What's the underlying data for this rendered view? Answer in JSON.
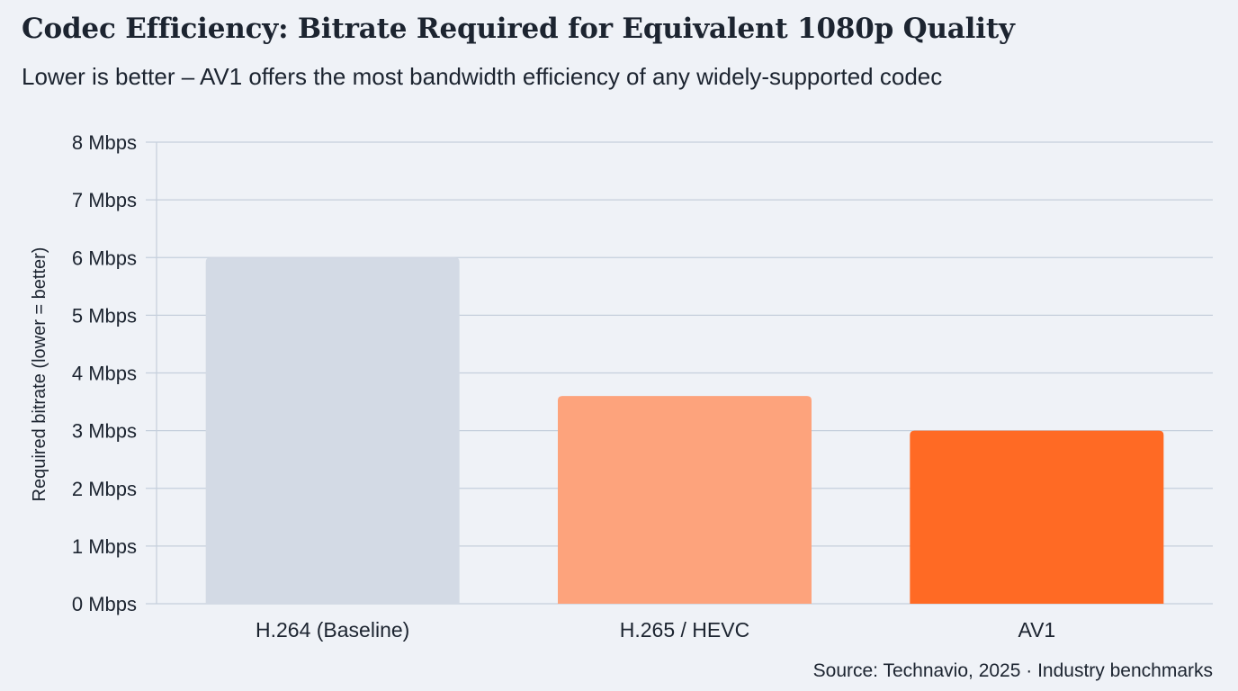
{
  "chart_data": {
    "type": "bar",
    "title": "Codec Efficiency: Bitrate Required for Equivalent 1080p Quality",
    "subtitle": "Lower is better – AV1 offers the most bandwidth efficiency of any widely-supported codec",
    "xlabel": "",
    "ylabel": "Required bitrate (lower = better)",
    "categories": [
      "H.264 (Baseline)",
      "H.265 / HEVC",
      "AV1"
    ],
    "values": [
      6.0,
      3.6,
      3.0
    ],
    "unit": "Mbps",
    "ylim": [
      0,
      8
    ],
    "yticks": [
      0,
      1,
      2,
      3,
      4,
      5,
      6,
      7,
      8
    ],
    "ytick_labels": [
      "0 Mbps",
      "1 Mbps",
      "2 Mbps",
      "3 Mbps",
      "4 Mbps",
      "5 Mbps",
      "6 Mbps",
      "7 Mbps",
      "8 Mbps"
    ],
    "grid": true,
    "legend": "none",
    "colors": [
      "#d3dae5",
      "#fda37c",
      "#ff6a24"
    ],
    "source": "Source: Technavio, 2025 · Industry benchmarks"
  },
  "style": {
    "background": "#eff2f7",
    "grid_color": "#c5cfdc",
    "text_color": "#1c2430"
  }
}
